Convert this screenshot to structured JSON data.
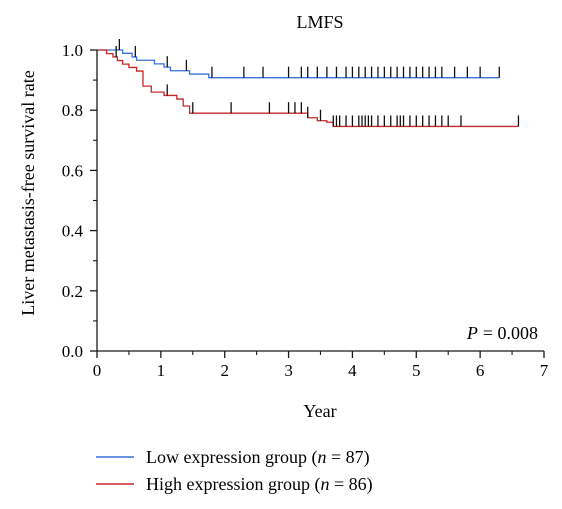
{
  "chart_data": {
    "type": "line",
    "title": "LMFS",
    "xlabel": "Year",
    "ylabel": "Liver metastasis-free survival rate",
    "xlim": [
      0,
      7
    ],
    "ylim": [
      0,
      1.0
    ],
    "xticks": [
      "0",
      "1",
      "2",
      "3",
      "4",
      "5",
      "6",
      "7"
    ],
    "yticks": [
      "0.0",
      "0.2",
      "0.4",
      "0.6",
      "0.8",
      "1.0"
    ],
    "annotation_prefix": "P",
    "annotation_value": "= 0.008",
    "legend_position": "bottom",
    "series": [
      {
        "name": "Low expression group",
        "legend_suffix": "n",
        "legend_count": "= 87",
        "color": "#3a6fd8",
        "steps": [
          [
            0,
            1.0
          ],
          [
            0.4,
            0.989
          ],
          [
            0.55,
            0.977
          ],
          [
            0.62,
            0.966
          ],
          [
            0.9,
            0.954
          ],
          [
            1.05,
            0.943
          ],
          [
            1.15,
            0.931
          ],
          [
            1.45,
            0.92
          ],
          [
            1.75,
            0.908
          ],
          [
            6.3,
            0.908
          ]
        ],
        "censors": [
          0.35,
          0.6,
          1.1,
          1.4,
          1.8,
          2.3,
          2.6,
          3.0,
          3.2,
          3.3,
          3.45,
          3.6,
          3.75,
          3.9,
          4.0,
          4.1,
          4.2,
          4.3,
          4.4,
          4.5,
          4.6,
          4.7,
          4.8,
          4.9,
          5.0,
          5.1,
          5.2,
          5.3,
          5.4,
          5.6,
          5.8,
          6.0,
          6.3
        ]
      },
      {
        "name": "High expression group",
        "legend_suffix": "n",
        "legend_count": "= 86",
        "color": "#c62828",
        "steps": [
          [
            0,
            1.0
          ],
          [
            0.15,
            0.988
          ],
          [
            0.25,
            0.977
          ],
          [
            0.32,
            0.965
          ],
          [
            0.4,
            0.953
          ],
          [
            0.5,
            0.942
          ],
          [
            0.62,
            0.93
          ],
          [
            0.72,
            0.88
          ],
          [
            0.85,
            0.86
          ],
          [
            1.05,
            0.849
          ],
          [
            1.25,
            0.837
          ],
          [
            1.35,
            0.814
          ],
          [
            1.45,
            0.79
          ],
          [
            2.75,
            0.79
          ],
          [
            3.3,
            0.775
          ],
          [
            3.45,
            0.765
          ],
          [
            3.6,
            0.76
          ],
          [
            3.7,
            0.746
          ],
          [
            6.6,
            0.746
          ]
        ],
        "censors": [
          0.3,
          1.1,
          1.5,
          2.1,
          2.7,
          3.0,
          3.1,
          3.2,
          3.3,
          3.5,
          3.7,
          3.75,
          3.8,
          3.9,
          4.0,
          4.1,
          4.15,
          4.2,
          4.25,
          4.3,
          4.4,
          4.5,
          4.6,
          4.7,
          4.75,
          4.8,
          4.9,
          5.0,
          5.1,
          5.2,
          5.3,
          5.4,
          5.5,
          5.7,
          6.6
        ]
      }
    ]
  }
}
